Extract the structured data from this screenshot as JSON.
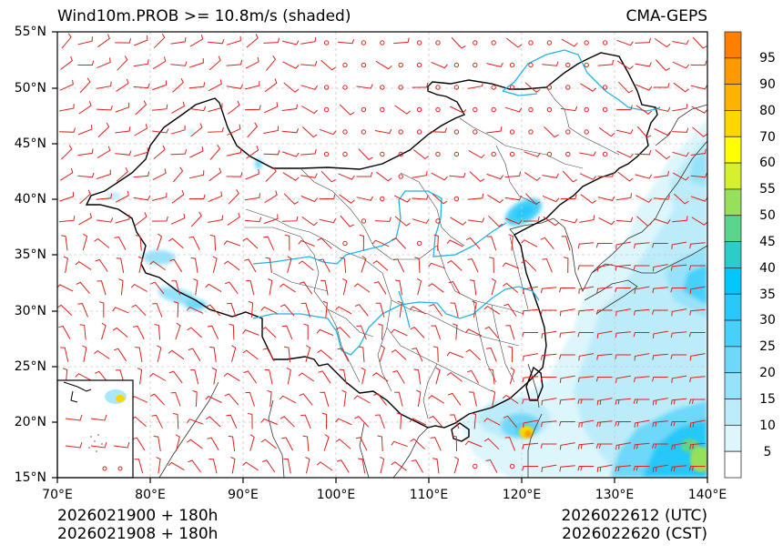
{
  "header": {
    "title": "Wind10m.PROB >= 10.8m/s (shaded)",
    "source": "CMA-GEPS"
  },
  "map": {
    "extent": {
      "lon_min": 70,
      "lon_max": 140,
      "lat_min": 15,
      "lat_max": 55
    },
    "lat_ticks": [
      "55°N",
      "50°N",
      "45°N",
      "40°N",
      "35°N",
      "30°N",
      "25°N",
      "20°N",
      "15°N"
    ],
    "lon_ticks": [
      "70°E",
      "80°E",
      "90°E",
      "100°E",
      "110°E",
      "120°E",
      "130°E",
      "140°E"
    ],
    "gridline_style": "dashed grey",
    "barb_color": "#e0201a",
    "river_color": "#1fb4e6",
    "border_color": "#000000",
    "inset": "South China Sea islands (lower-left)"
  },
  "colorbar": {
    "labels": [
      "95",
      "90",
      "80",
      "70",
      "60",
      "55",
      "50",
      "45",
      "40",
      "35",
      "30",
      "25",
      "20",
      "15",
      "10",
      "5"
    ],
    "colors_top_to_bottom": [
      "#ff7f00",
      "#ff9900",
      "#ffb300",
      "#ffd700",
      "#ffff00",
      "#d6f02e",
      "#96e05a",
      "#5ad68c",
      "#2cccc8",
      "#00c8ff",
      "#28c8fa",
      "#46d0fa",
      "#6ed8fa",
      "#96e2fa",
      "#bcecfa",
      "#dcf6fc",
      "#ffffff"
    ]
  },
  "footer": {
    "init_utc": "2026021900 + 180h",
    "init_cst": "2026021908 + 180h",
    "valid_utc": "2026022612 (UTC)",
    "valid_cst": "2026022620 (CST)"
  }
}
